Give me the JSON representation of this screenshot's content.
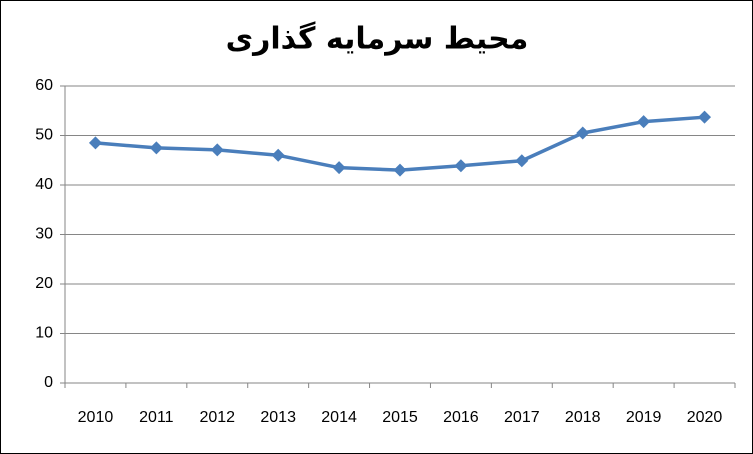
{
  "chart_data": {
    "type": "line",
    "title": "محیط سرمایه گذاری",
    "categories": [
      "2010",
      "2011",
      "2012",
      "2013",
      "2014",
      "2015",
      "2016",
      "2017",
      "2018",
      "2019",
      "2020"
    ],
    "values": [
      48.5,
      47.5,
      47.1,
      46.0,
      43.5,
      43.0,
      43.9,
      44.9,
      50.5,
      52.8,
      53.7
    ],
    "color": "#4a7ebb",
    "ylim": [
      0,
      60
    ],
    "yticks": [
      0,
      10,
      20,
      30,
      40,
      50,
      60
    ],
    "grid": true
  }
}
